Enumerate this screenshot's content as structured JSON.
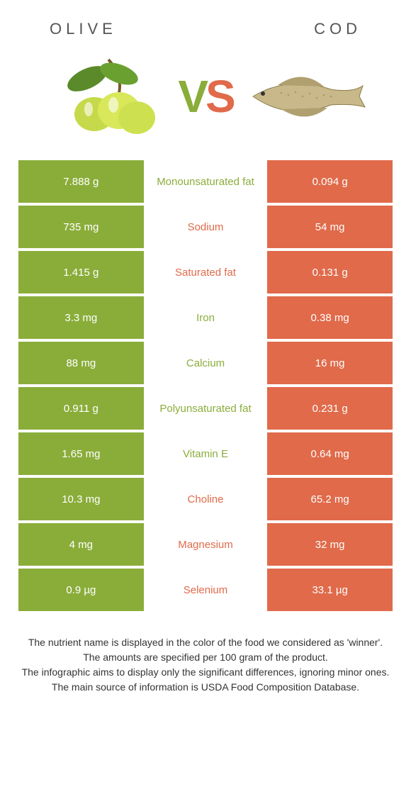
{
  "colors": {
    "olive": "#8aad3a",
    "cod": "#e06a4a",
    "background": "#ffffff",
    "text": "#333333"
  },
  "header": {
    "left": "OLIVE",
    "right": "COD"
  },
  "vs": {
    "v": "V",
    "s": "S"
  },
  "rows": [
    {
      "nutrient": "Monounsaturated fat",
      "olive": "7.888 g",
      "cod": "0.094 g",
      "winner": "olive"
    },
    {
      "nutrient": "Sodium",
      "olive": "735 mg",
      "cod": "54 mg",
      "winner": "cod"
    },
    {
      "nutrient": "Saturated fat",
      "olive": "1.415 g",
      "cod": "0.131 g",
      "winner": "cod"
    },
    {
      "nutrient": "Iron",
      "olive": "3.3 mg",
      "cod": "0.38 mg",
      "winner": "olive"
    },
    {
      "nutrient": "Calcium",
      "olive": "88 mg",
      "cod": "16 mg",
      "winner": "olive"
    },
    {
      "nutrient": "Polyunsaturated fat",
      "olive": "0.911 g",
      "cod": "0.231 g",
      "winner": "olive"
    },
    {
      "nutrient": "Vitamin E",
      "olive": "1.65 mg",
      "cod": "0.64 mg",
      "winner": "olive"
    },
    {
      "nutrient": "Choline",
      "olive": "10.3 mg",
      "cod": "65.2 mg",
      "winner": "cod"
    },
    {
      "nutrient": "Magnesium",
      "olive": "4 mg",
      "cod": "32 mg",
      "winner": "cod"
    },
    {
      "nutrient": "Selenium",
      "olive": "0.9 µg",
      "cod": "33.1 µg",
      "winner": "cod"
    }
  ],
  "footnotes": [
    "The nutrient name is displayed in the color of the food we considered as 'winner'.",
    "The amounts are specified per 100 gram of the product.",
    "The infographic aims to display only the significant differences, ignoring minor ones.",
    "The main source of information is USDA Food Composition Database."
  ]
}
